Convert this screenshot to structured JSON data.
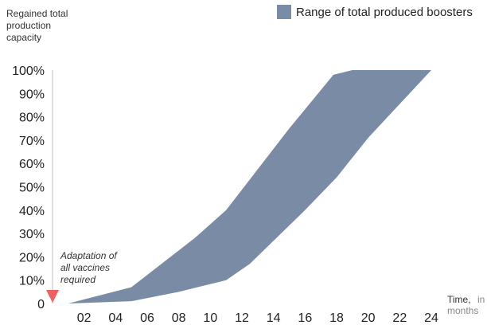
{
  "chart_data": {
    "type": "area",
    "ylabel": [
      "Regained total",
      "production",
      "capacity"
    ],
    "xlabel": {
      "main": "Time,",
      "unit_1": "in",
      "unit_2": "months"
    },
    "legend": {
      "label": "Range of total produced boosters",
      "color": "#7a8ba5",
      "placement": "top-right"
    },
    "annotation": {
      "lines": [
        "Adaptation of",
        "all vaccines",
        "required"
      ],
      "marker": "down-triangle",
      "marker_color": "#f06060",
      "x": 0
    },
    "xlim": [
      0,
      24
    ],
    "ylim": [
      0,
      100
    ],
    "x_ticks": [
      {
        "x": 2,
        "label": "02"
      },
      {
        "x": 4,
        "label": "04"
      },
      {
        "x": 6,
        "label": "06"
      },
      {
        "x": 8,
        "label": "08"
      },
      {
        "x": 10,
        "label": "10"
      },
      {
        "x": 12,
        "label": "12"
      },
      {
        "x": 14,
        "label": "14"
      },
      {
        "x": 16,
        "label": "16"
      },
      {
        "x": 18,
        "label": "18"
      },
      {
        "x": 20,
        "label": "20"
      },
      {
        "x": 22,
        "label": "22"
      },
      {
        "x": 24,
        "label": "24"
      }
    ],
    "y_ticks": [
      {
        "y": 0,
        "label": "0"
      },
      {
        "y": 10,
        "label": "10%"
      },
      {
        "y": 20,
        "label": "20%"
      },
      {
        "y": 30,
        "label": "30%"
      },
      {
        "y": 40,
        "label": "40%"
      },
      {
        "y": 50,
        "label": "50%"
      },
      {
        "y": 60,
        "label": "60%"
      },
      {
        "y": 70,
        "label": "70%"
      },
      {
        "y": 80,
        "label": "80%"
      },
      {
        "y": 90,
        "label": "90%"
      },
      {
        "y": 100,
        "label": "100%"
      }
    ],
    "series": [
      {
        "role": "upper",
        "points": [
          [
            1,
            0
          ],
          [
            5,
            7
          ],
          [
            9,
            28
          ],
          [
            11,
            40
          ],
          [
            15,
            75
          ],
          [
            17.8,
            98
          ],
          [
            19,
            100
          ],
          [
            24,
            100
          ]
        ]
      },
      {
        "role": "lower",
        "points": [
          [
            1,
            0
          ],
          [
            5,
            1
          ],
          [
            8,
            5
          ],
          [
            11,
            10
          ],
          [
            12.5,
            17
          ],
          [
            16,
            40
          ],
          [
            18,
            54
          ],
          [
            20,
            71
          ],
          [
            24,
            100
          ]
        ]
      }
    ]
  }
}
